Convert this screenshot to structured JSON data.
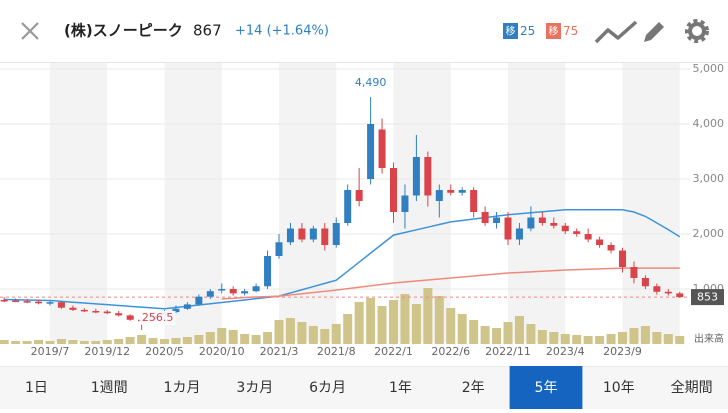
{
  "header": {
    "title": "(株)スノーピーク",
    "price": "867",
    "change": "+14 (+1.64%)",
    "badges": [
      {
        "label": "移",
        "period": "25",
        "color": "#2f7fc1"
      },
      {
        "label": "移",
        "period": "75",
        "color": "#e8735f"
      }
    ]
  },
  "chart": {
    "type": "candlestick",
    "categories": [
      null,
      null,
      null,
      null,
      "2019/7",
      null,
      null,
      null,
      null,
      "2019/12",
      null,
      null,
      null,
      null,
      "2020/5",
      null,
      null,
      null,
      null,
      "2020/10",
      null,
      null,
      null,
      null,
      "2021/3",
      null,
      null,
      null,
      null,
      "2021/8",
      null,
      null,
      null,
      null,
      "2022/1",
      null,
      null,
      null,
      null,
      "2022/6",
      null,
      null,
      null,
      null,
      "2022/11",
      null,
      null,
      null,
      null,
      "2023/4",
      null,
      null,
      null,
      null,
      "2023/9",
      null,
      null,
      null,
      null,
      null
    ],
    "open": [
      800,
      790,
      780,
      770,
      740,
      760,
      660,
      620,
      600,
      590,
      560,
      520,
      440,
      420,
      520,
      580,
      640,
      720,
      860,
      980,
      1000,
      920,
      960,
      1050,
      1600,
      1850,
      2100,
      1900,
      2100,
      1800,
      2200,
      2800,
      3000,
      3900,
      3200,
      2400,
      2700,
      3400,
      2600,
      2800,
      2750,
      2800,
      2400,
      2200,
      2300,
      1900,
      2100,
      2300,
      2200,
      2150,
      2050,
      2000,
      1900,
      1800,
      1700,
      1400,
      1200,
      1050,
      950,
      920
    ],
    "high": [
      850,
      830,
      820,
      800,
      790,
      780,
      700,
      650,
      640,
      620,
      600,
      540,
      500,
      560,
      620,
      700,
      760,
      900,
      1000,
      1100,
      1050,
      1000,
      1100,
      1700,
      2000,
      2200,
      2200,
      2150,
      2200,
      2300,
      2900,
      3200,
      4490,
      4100,
      3300,
      2900,
      3800,
      3500,
      2900,
      2900,
      2850,
      2850,
      2500,
      2400,
      2400,
      2200,
      2500,
      2400,
      2300,
      2200,
      2100,
      2100,
      1950,
      1850,
      1750,
      1500,
      1250,
      1100,
      1000,
      950
    ],
    "low": [
      760,
      760,
      740,
      720,
      700,
      640,
      600,
      580,
      560,
      540,
      500,
      420,
      256.5,
      400,
      480,
      560,
      620,
      700,
      820,
      920,
      880,
      880,
      940,
      1000,
      1550,
      1800,
      1850,
      1850,
      1700,
      1750,
      2150,
      2500,
      2900,
      3100,
      2200,
      2100,
      2600,
      2500,
      2300,
      2700,
      2700,
      2300,
      2150,
      2100,
      1800,
      1800,
      2050,
      2150,
      2100,
      2000,
      1950,
      1850,
      1750,
      1650,
      1300,
      1100,
      1000,
      900,
      880,
      840
    ],
    "close": [
      790,
      780,
      770,
      740,
      760,
      660,
      620,
      600,
      590,
      560,
      520,
      440,
      420,
      520,
      580,
      640,
      720,
      860,
      960,
      1000,
      920,
      960,
      1050,
      1600,
      1850,
      2100,
      1900,
      2100,
      1800,
      2200,
      2800,
      2600,
      4000,
      3200,
      2400,
      2700,
      3400,
      2700,
      2800,
      2750,
      2800,
      2400,
      2200,
      2300,
      1900,
      2100,
      2300,
      2200,
      2150,
      2050,
      2000,
      1900,
      1800,
      1700,
      1400,
      1200,
      1050,
      950,
      920,
      853
    ],
    "up_color": "#2f7fc1",
    "down_color": "#d9434a",
    "ma": [
      {
        "name": "25",
        "color": "#3d93db",
        "values": [
          810,
          805,
          800,
          795,
          790,
          775,
          760,
          745,
          730,
          715,
          700,
          685,
          670,
          655,
          640,
          663,
          686,
          709,
          732,
          755,
          778,
          801,
          824,
          847,
          870,
          928,
          986,
          1044,
          1102,
          1160,
          1324,
          1488,
          1652,
          1816,
          1980,
          2028,
          2076,
          2124,
          2172,
          2220,
          2246,
          2272,
          2298,
          2324,
          2350,
          2368,
          2386,
          2404,
          2422,
          2440,
          2440,
          2440,
          2440,
          2440,
          2440,
          2400,
          2320,
          2200,
          2080,
          1950
        ]
      },
      {
        "name": "75",
        "color": "#f0897a",
        "values": [
          null,
          null,
          null,
          null,
          null,
          null,
          null,
          null,
          null,
          null,
          null,
          null,
          null,
          null,
          null,
          null,
          null,
          null,
          null,
          820,
          830,
          845,
          855,
          862,
          870,
          892,
          914,
          936,
          958,
          980,
          1006,
          1032,
          1058,
          1084,
          1110,
          1128,
          1146,
          1164,
          1182,
          1200,
          1218,
          1236,
          1254,
          1272,
          1290,
          1301,
          1312,
          1323,
          1334,
          1345,
          1352,
          1359,
          1366,
          1373,
          1380,
          1380,
          1380,
          1380,
          1380,
          1380
        ]
      }
    ],
    "volume": {
      "label": "出来高",
      "color": "#cfc58a",
      "values": [
        4,
        3,
        3,
        4,
        3,
        5,
        4,
        3,
        3,
        4,
        5,
        7,
        9,
        6,
        5,
        6,
        7,
        9,
        12,
        16,
        14,
        10,
        9,
        12,
        24,
        26,
        22,
        18,
        15,
        20,
        30,
        42,
        46,
        38,
        44,
        50,
        40,
        56,
        48,
        36,
        30,
        24,
        18,
        16,
        22,
        28,
        20,
        14,
        12,
        10,
        9,
        8,
        8,
        10,
        12,
        16,
        18,
        12,
        10,
        8
      ]
    },
    "ylim": [
      0,
      5000
    ],
    "yticks": [
      {
        "value": 1000,
        "label": "1,000"
      },
      {
        "value": 2000,
        "label": "2,000"
      },
      {
        "value": 3000,
        "label": "3,000"
      },
      {
        "value": 4000,
        "label": "4,000"
      },
      {
        "value": 5000,
        "label": "5,000"
      }
    ],
    "annotations": [
      {
        "index": 32,
        "value": 4490,
        "label": "4,490",
        "color": "#2f7fc1"
      },
      {
        "index": 12,
        "value": 256.5,
        "label": "256.5",
        "color": "#d9434a"
      }
    ],
    "current": {
      "value": 853,
      "label": "853"
    }
  },
  "tabs": {
    "items": [
      "1日",
      "1週間",
      "1カ月",
      "3カ月",
      "6カ月",
      "1年",
      "2年",
      "5年",
      "10年",
      "全期間"
    ],
    "selected": 7
  }
}
